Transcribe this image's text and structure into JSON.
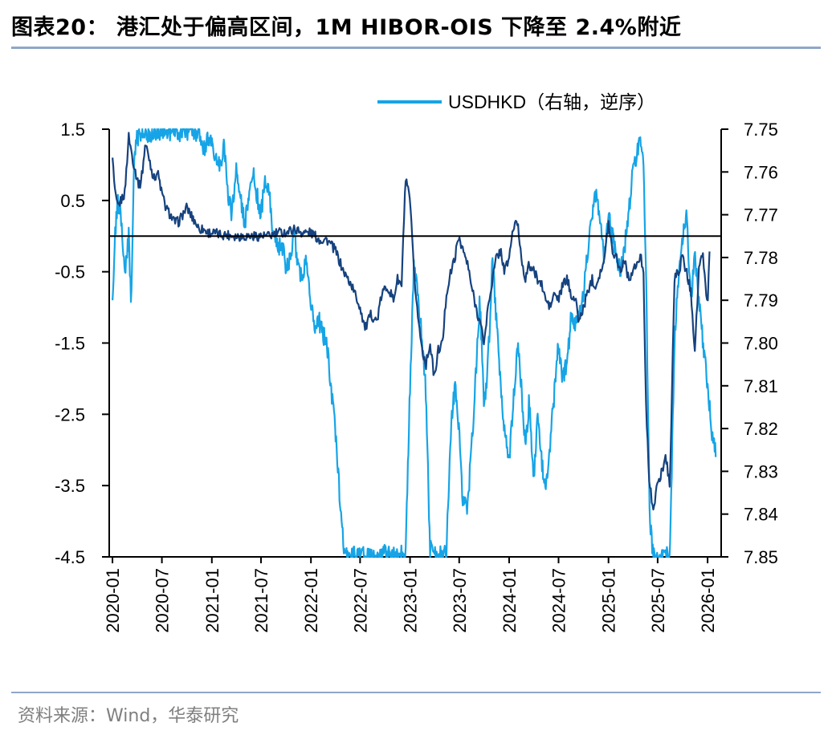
{
  "figure": {
    "title": "图表20： 港汇处于偏高区间，1M HIBOR-OIS 下降至 2.4%附近",
    "source": "资料来源：Wind，华泰研究"
  },
  "chart_data": {
    "type": "line",
    "title": "",
    "colors": {
      "hibor_ois": "#16427e",
      "usdhkd": "#16a4e6",
      "grid_zero": "#000000",
      "rules": "#8fa6c8"
    },
    "legend": {
      "placement": "top",
      "entries": [
        "",
        "USDHKD（右轴，逆序）"
      ]
    },
    "x_axis": {
      "type": "date",
      "range": [
        "2019-12-20",
        "2026-02-20"
      ],
      "tick_labels": [
        "2020-01",
        "2020-07",
        "2021-01",
        "2021-07",
        "2022-01",
        "2022-07",
        "2023-01",
        "2023-07",
        "2024-01",
        "2024-07",
        "2025-01",
        "2025-07",
        "2026-01"
      ]
    },
    "y_left": {
      "ylim": [
        -4.5,
        1.5
      ],
      "tick_labels": [
        "1.5",
        "0.5",
        "-0.5",
        "-1.5",
        "-2.5",
        "-3.5",
        "-4.5"
      ]
    },
    "y_right": {
      "ylim": [
        7.75,
        7.85
      ],
      "inverted": true,
      "tick_labels": [
        "7.75",
        "7.76",
        "7.77",
        "7.78",
        "7.79",
        "7.80",
        "7.81",
        "7.82",
        "7.83",
        "7.84",
        "7.85"
      ]
    },
    "series": [
      {
        "name": "",
        "axis": "left",
        "x": [
          "2020-01-01",
          "2020-01-10",
          "2020-01-20",
          "2020-02-01",
          "2020-02-15",
          "2020-03-01",
          "2020-03-10",
          "2020-03-20",
          "2020-04-01",
          "2020-04-10",
          "2020-04-20",
          "2020-05-01",
          "2020-05-15",
          "2020-06-01",
          "2020-06-15",
          "2020-07-01",
          "2020-07-15",
          "2020-08-01",
          "2020-08-15",
          "2020-09-01",
          "2020-09-15",
          "2020-10-01",
          "2020-10-15",
          "2020-11-01",
          "2020-11-15",
          "2020-12-01",
          "2020-12-15",
          "2021-01-01",
          "2021-02-01",
          "2021-03-01",
          "2021-04-01",
          "2021-05-01",
          "2021-06-01",
          "2021-07-01",
          "2021-08-01",
          "2021-09-01",
          "2021-10-01",
          "2021-11-01",
          "2021-12-01",
          "2022-01-01",
          "2022-02-01",
          "2022-03-01",
          "2022-04-01",
          "2022-05-01",
          "2022-06-01",
          "2022-07-01",
          "2022-07-20",
          "2022-08-10",
          "2022-09-01",
          "2022-09-20",
          "2022-10-10",
          "2022-11-01",
          "2022-11-15",
          "2022-12-01",
          "2022-12-15",
          "2023-01-01",
          "2023-01-15",
          "2023-02-01",
          "2023-02-15",
          "2023-03-01",
          "2023-03-15",
          "2023-04-01",
          "2023-04-15",
          "2023-05-01",
          "2023-05-15",
          "2023-06-01",
          "2023-06-15",
          "2023-07-01",
          "2023-07-15",
          "2023-08-01",
          "2023-08-15",
          "2023-09-01",
          "2023-09-15",
          "2023-10-01",
          "2023-10-15",
          "2023-11-01",
          "2023-11-15",
          "2023-12-01",
          "2023-12-15",
          "2024-01-01",
          "2024-01-15",
          "2024-02-01",
          "2024-02-15",
          "2024-03-01",
          "2024-03-15",
          "2024-04-01",
          "2024-04-15",
          "2024-05-01",
          "2024-05-15",
          "2024-06-01",
          "2024-06-15",
          "2024-07-01",
          "2024-07-15",
          "2024-08-01",
          "2024-08-15",
          "2024-09-01",
          "2024-09-15",
          "2024-10-01",
          "2024-10-15",
          "2024-11-01",
          "2024-11-15",
          "2024-12-01",
          "2024-12-15",
          "2025-01-01",
          "2025-01-15",
          "2025-02-01",
          "2025-02-15",
          "2025-03-01",
          "2025-03-15",
          "2025-04-01",
          "2025-04-15",
          "2025-05-01",
          "2025-05-10",
          "2025-05-20",
          "2025-06-01",
          "2025-06-15",
          "2025-07-01",
          "2025-07-15",
          "2025-08-01",
          "2025-08-15",
          "2025-09-01",
          "2025-09-15",
          "2025-10-01",
          "2025-10-15",
          "2025-11-01",
          "2025-11-15",
          "2025-12-01",
          "2025-12-15",
          "2026-01-01",
          "2026-01-10"
        ],
        "values": [
          1.1,
          0.6,
          0.4,
          0.5,
          0.6,
          1.4,
          1.2,
          1.0,
          0.8,
          0.7,
          0.9,
          1.3,
          1.1,
          0.8,
          0.9,
          0.6,
          0.4,
          0.3,
          0.2,
          0.2,
          0.3,
          0.4,
          0.3,
          0.2,
          0.1,
          0.1,
          0.05,
          0.05,
          0.02,
          0.02,
          0.0,
          0.0,
          0.0,
          0.0,
          0.0,
          0.05,
          0.05,
          0.1,
          0.05,
          0.05,
          -0.05,
          -0.05,
          -0.2,
          -0.5,
          -0.7,
          -1.0,
          -1.3,
          -1.1,
          -1.2,
          -0.8,
          -0.7,
          -0.9,
          -0.6,
          -0.7,
          0.8,
          0.5,
          -0.5,
          -1.2,
          -1.6,
          -1.8,
          -1.5,
          -2.0,
          -1.6,
          -1.5,
          -0.8,
          -0.5,
          -0.3,
          0.0,
          -0.2,
          -0.4,
          -0.7,
          -1.0,
          -1.2,
          -1.5,
          -1.0,
          -0.6,
          -0.3,
          -0.2,
          -0.5,
          -0.3,
          0.1,
          0.2,
          -0.3,
          -0.6,
          -0.4,
          -0.5,
          -0.6,
          -0.7,
          -0.9,
          -1.0,
          -0.8,
          -0.9,
          -0.7,
          -0.6,
          -0.8,
          -0.9,
          -1.2,
          -1.0,
          -0.8,
          -0.6,
          -0.7,
          -0.5,
          -0.4,
          0.2,
          -0.2,
          -0.3,
          -0.5,
          -0.3,
          -0.6,
          -0.5,
          -0.4,
          -0.3,
          -0.5,
          -2.5,
          -3.5,
          -3.8,
          -3.5,
          -3.3,
          -3.1,
          -3.5,
          -0.6,
          -0.5,
          -0.3,
          -0.5,
          -0.8,
          -1.6,
          -0.4,
          -0.3,
          -1.0,
          0.0
        ]
      },
      {
        "name": "USDHKD（右轴，逆序）",
        "axis": "right",
        "x": [
          "2020-01-01",
          "2020-01-10",
          "2020-01-20",
          "2020-02-01",
          "2020-02-15",
          "2020-03-01",
          "2020-03-10",
          "2020-03-20",
          "2020-04-01",
          "2020-04-15",
          "2020-05-01",
          "2020-05-15",
          "2020-06-01",
          "2020-06-15",
          "2020-07-01",
          "2020-07-15",
          "2020-08-01",
          "2020-08-15",
          "2020-09-01",
          "2020-09-15",
          "2020-10-01",
          "2020-10-15",
          "2020-11-01",
          "2020-11-15",
          "2020-12-01",
          "2020-12-15",
          "2021-01-01",
          "2021-01-15",
          "2021-02-01",
          "2021-02-15",
          "2021-03-01",
          "2021-03-15",
          "2021-04-01",
          "2021-04-15",
          "2021-05-01",
          "2021-05-15",
          "2021-06-01",
          "2021-06-15",
          "2021-07-01",
          "2021-07-15",
          "2021-08-01",
          "2021-08-15",
          "2021-09-01",
          "2021-09-15",
          "2021-10-01",
          "2021-10-15",
          "2021-11-01",
          "2021-11-15",
          "2021-12-01",
          "2021-12-15",
          "2022-01-01",
          "2022-01-15",
          "2022-02-01",
          "2022-02-15",
          "2022-03-01",
          "2022-03-15",
          "2022-04-01",
          "2022-04-15",
          "2022-05-01",
          "2022-06-01",
          "2022-07-01",
          "2022-08-01",
          "2022-09-01",
          "2022-10-01",
          "2022-11-01",
          "2022-12-01",
          "2022-12-15",
          "2023-01-01",
          "2023-01-15",
          "2023-02-01",
          "2023-02-15",
          "2023-03-01",
          "2023-03-15",
          "2023-04-01",
          "2023-04-15",
          "2023-05-01",
          "2023-05-15",
          "2023-06-01",
          "2023-06-15",
          "2023-07-01",
          "2023-07-15",
          "2023-08-01",
          "2023-08-15",
          "2023-09-01",
          "2023-09-15",
          "2023-10-01",
          "2023-10-15",
          "2023-11-01",
          "2023-11-15",
          "2023-12-01",
          "2023-12-15",
          "2024-01-01",
          "2024-01-15",
          "2024-02-01",
          "2024-02-15",
          "2024-03-01",
          "2024-03-15",
          "2024-04-01",
          "2024-04-15",
          "2024-05-01",
          "2024-05-15",
          "2024-06-01",
          "2024-06-15",
          "2024-07-01",
          "2024-07-15",
          "2024-08-01",
          "2024-08-15",
          "2024-09-01",
          "2024-09-15",
          "2024-10-01",
          "2024-10-15",
          "2024-11-01",
          "2024-11-15",
          "2024-12-01",
          "2024-12-15",
          "2025-01-01",
          "2025-01-15",
          "2025-02-01",
          "2025-02-15",
          "2025-03-01",
          "2025-03-15",
          "2025-04-01",
          "2025-04-15",
          "2025-05-01",
          "2025-05-10",
          "2025-05-20",
          "2025-06-01",
          "2025-06-15",
          "2025-07-01",
          "2025-07-15",
          "2025-08-01",
          "2025-08-15",
          "2025-09-01",
          "2025-09-15",
          "2025-10-01",
          "2025-10-15",
          "2025-11-01",
          "2025-11-15",
          "2025-12-01",
          "2025-12-15",
          "2026-01-01",
          "2026-01-15",
          "2026-02-01"
        ],
        "values": [
          7.79,
          7.775,
          7.767,
          7.77,
          7.785,
          7.775,
          7.792,
          7.758,
          7.752,
          7.751,
          7.75,
          7.752,
          7.75,
          7.751,
          7.75,
          7.751,
          7.751,
          7.75,
          7.751,
          7.75,
          7.751,
          7.75,
          7.752,
          7.751,
          7.755,
          7.753,
          7.752,
          7.757,
          7.758,
          7.754,
          7.765,
          7.77,
          7.76,
          7.765,
          7.772,
          7.768,
          7.76,
          7.765,
          7.77,
          7.762,
          7.765,
          7.775,
          7.778,
          7.776,
          7.783,
          7.78,
          7.775,
          7.782,
          7.785,
          7.779,
          7.79,
          7.797,
          7.795,
          7.798,
          7.8,
          7.81,
          7.82,
          7.834,
          7.848,
          7.85,
          7.849,
          7.85,
          7.85,
          7.849,
          7.85,
          7.849,
          7.85,
          7.81,
          7.782,
          7.79,
          7.8,
          7.812,
          7.848,
          7.85,
          7.849,
          7.85,
          7.849,
          7.82,
          7.81,
          7.82,
          7.838,
          7.838,
          7.825,
          7.807,
          7.79,
          7.815,
          7.805,
          7.78,
          7.795,
          7.81,
          7.82,
          7.828,
          7.815,
          7.8,
          7.81,
          7.825,
          7.813,
          7.832,
          7.817,
          7.828,
          7.835,
          7.823,
          7.812,
          7.8,
          7.808,
          7.805,
          7.795,
          7.796,
          7.793,
          7.788,
          7.78,
          7.77,
          7.765,
          7.772,
          7.78,
          7.77,
          7.775,
          7.78,
          7.783,
          7.778,
          7.77,
          7.76,
          7.756,
          7.752,
          7.76,
          7.785,
          7.84,
          7.85,
          7.85,
          7.85,
          7.849,
          7.85,
          7.8,
          7.785,
          7.775,
          7.77,
          7.79,
          7.78,
          7.79,
          7.8,
          7.81,
          7.82,
          7.825
        ]
      }
    ]
  }
}
